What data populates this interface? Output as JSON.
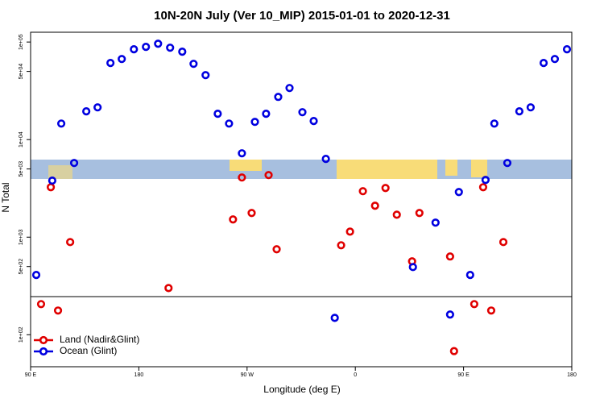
{
  "chart_data": {
    "type": "scatter",
    "title": "10N-20N July (Ver 10_MIP)   2015-01-01 to 2020-12-31",
    "x_label": "Longitude (deg E)",
    "y_label": "N Total",
    "xlim": [
      90,
      540
    ],
    "ylim": [
      47,
      126000
    ],
    "log_y": true,
    "xticks": [
      {
        "value": 90,
        "label": "90 E"
      },
      {
        "value": 180,
        "label": "180"
      },
      {
        "value": 270,
        "label": "90 W"
      },
      {
        "value": 360,
        "label": "0"
      },
      {
        "value": 450,
        "label": "90 E"
      },
      {
        "value": 540,
        "label": "180"
      }
    ],
    "yticks": [
      {
        "value": 100,
        "label": "1e+02"
      },
      {
        "value": 500,
        "label": "5e+02"
      },
      {
        "value": 1000,
        "label": "1e+03"
      },
      {
        "value": 5000,
        "label": "5e+03"
      },
      {
        "value": 10000,
        "label": "1e+04"
      },
      {
        "value": 50000,
        "label": "5e+04"
      },
      {
        "value": 100000,
        "label": "1e+05"
      }
    ],
    "legend": "bottom-left",
    "series": [
      {
        "name": "Land (Nadir&Glint)",
        "color": "#e00000",
        "x": [
          98.7,
          106.8,
          112.8,
          122.9,
          204.7,
          258.3,
          265.7,
          273.8,
          287.9,
          294.6,
          348.2,
          355.6,
          366.3,
          376.4,
          385.1,
          394.5,
          413.3,
          407.2,
          438.8,
          442.1,
          458.9,
          466.3,
          473,
          483.1
        ],
        "values": [
          206,
          3250,
          177,
          891,
          301,
          1520,
          4090,
          1770,
          4330,
          752,
          826,
          1140,
          2960,
          2100,
          3190,
          1700,
          1770,
          565,
          634,
          68,
          206,
          3250,
          177,
          891
        ]
      },
      {
        "name": "Ocean (Glint)",
        "color": "#0000e0",
        "x": [
          94.7,
          108,
          115.5,
          126.2,
          136.3,
          145.7,
          156.4,
          165.8,
          175.9,
          185.9,
          196,
          206,
          216.1,
          225.5,
          235.5,
          245.6,
          255,
          265.7,
          276.5,
          285.8,
          295.9,
          305.3,
          316,
          325.4,
          335.5,
          342.9,
          407.9,
          426.7,
          438.8,
          446.1,
          455.5,
          468.3,
          475.6,
          486.4,
          496.4,
          505.8,
          516.6,
          525.9,
          536
        ],
        "values": [
          410,
          3800,
          14600,
          5760,
          19500,
          21400,
          61000,
          67000,
          84300,
          89200,
          96100,
          87500,
          79600,
          59800,
          45800,
          18400,
          14600,
          7240,
          15200,
          18400,
          27400,
          33800,
          19100,
          15500,
          6340,
          149,
          494,
          1410,
          161,
          2900,
          410,
          3860,
          14600,
          5760,
          19500,
          21400,
          61000,
          67000,
          84300
        ]
      }
    ]
  }
}
